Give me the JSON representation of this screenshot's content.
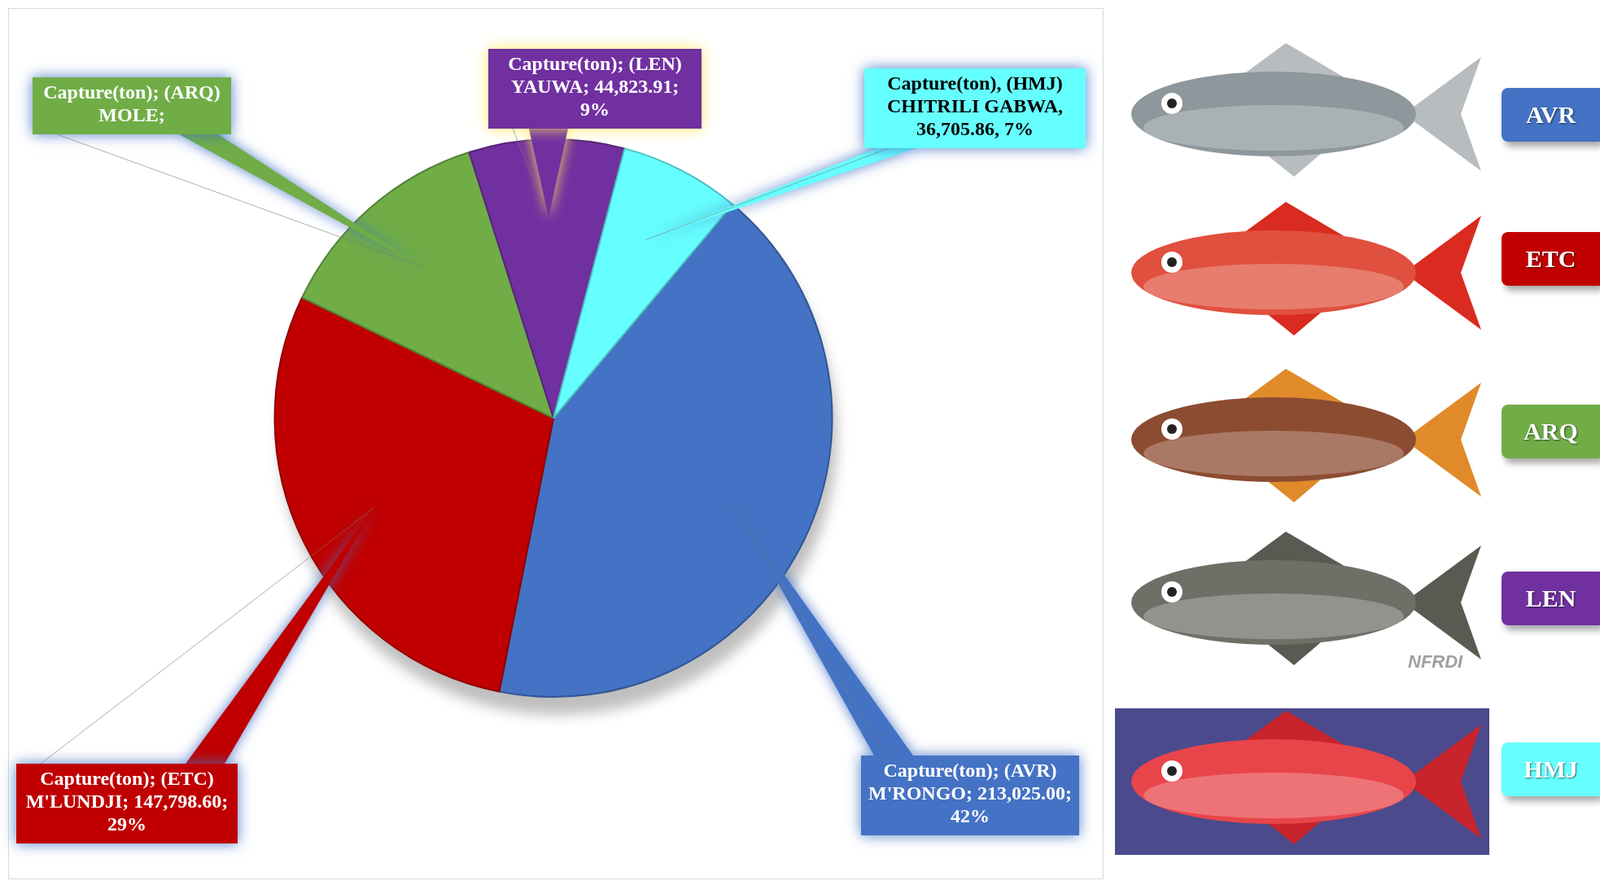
{
  "chart_data": {
    "type": "pie",
    "categories": [
      "AVR",
      "ETC",
      "ARQ",
      "LEN",
      "HMJ"
    ],
    "values": [
      42,
      29,
      13,
      9,
      7
    ],
    "value_labels": [
      "Capture(ton); (AVR) M'RONGO; 213,025.00; 42%",
      "Capture(ton); (ETC) M'LUNDJI; 147,798.60; 29%",
      "Capture(ton); (ARQ) MOLE;",
      "Capture(ton); (LEN) YAUWA; 44,823.91; 9%",
      "Capture(ton), (HMJ) CHITRILI GABWA, 36,705.86, 7%"
    ],
    "colors": [
      "#4472c4",
      "#c00000",
      "#70ad47",
      "#7030a0",
      "#66ffff"
    ],
    "data_labels": true,
    "legend": "right",
    "annotations": [
      "NFRDI"
    ]
  }
}
